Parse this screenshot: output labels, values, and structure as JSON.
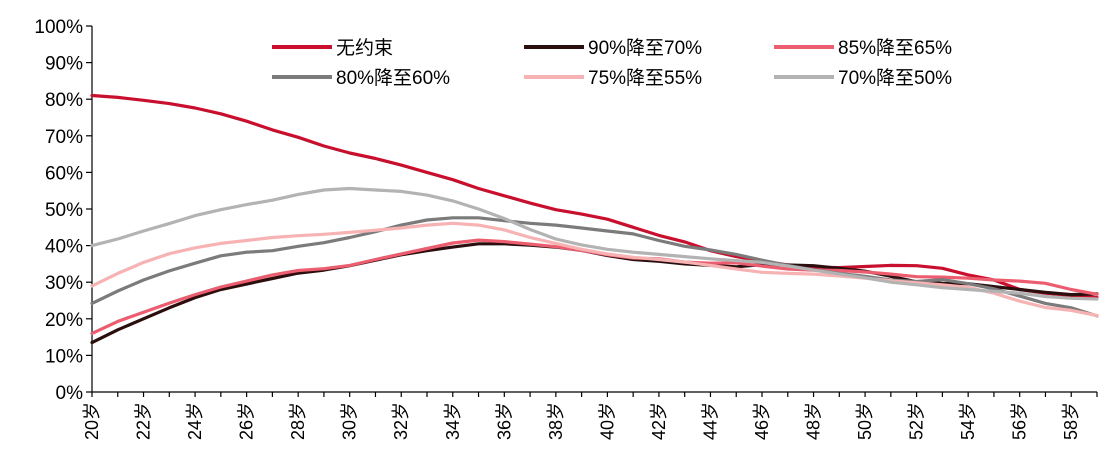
{
  "chart_data": {
    "type": "line",
    "title": "",
    "xlabel": "",
    "ylabel": "",
    "ylim": [
      0,
      100
    ],
    "y_ticks": [
      "0%",
      "10%",
      "20%",
      "30%",
      "40%",
      "50%",
      "60%",
      "70%",
      "80%",
      "90%",
      "100%"
    ],
    "x_ticks": [
      "20岁",
      "22岁",
      "24岁",
      "26岁",
      "28岁",
      "30岁",
      "32岁",
      "34岁",
      "36岁",
      "38岁",
      "40岁",
      "42岁",
      "44岁",
      "46岁",
      "48岁",
      "50岁",
      "52岁",
      "54岁",
      "56岁",
      "58岁"
    ],
    "x": [
      20,
      21,
      22,
      23,
      24,
      25,
      26,
      27,
      28,
      29,
      30,
      31,
      32,
      33,
      34,
      35,
      36,
      37,
      38,
      39,
      40,
      41,
      42,
      43,
      44,
      45,
      46,
      47,
      48,
      49,
      50,
      51,
      52,
      53,
      54,
      55,
      56,
      57,
      58,
      59
    ],
    "grid": false,
    "legend": "top",
    "series": [
      {
        "name": "无约束",
        "color": "#c8102e",
        "values": [
          81,
          80.5,
          79.7,
          78.8,
          77.6,
          76,
          74,
          71.6,
          69.6,
          67.2,
          65.3,
          63.8,
          62,
          60,
          58,
          55.6,
          53.6,
          51.6,
          49.8,
          48.6,
          47.2,
          45,
          42.8,
          41,
          38.6,
          37,
          35.8,
          34.7,
          34.1,
          34,
          34.3,
          34.6,
          34.5,
          33.8,
          32,
          30.6,
          28,
          27,
          26.3,
          25.8
        ]
      },
      {
        "name": "90%降至70%",
        "color": "#2b0f0f",
        "values": [
          13.5,
          17,
          20,
          23,
          25.8,
          28,
          29.5,
          31,
          32.5,
          33.3,
          34.5,
          36,
          37.5,
          38.6,
          39.6,
          40.5,
          40.5,
          40.1,
          39.6,
          38.7,
          37.3,
          36.2,
          35.7,
          35,
          34.6,
          34.2,
          34.8,
          34.7,
          34.5,
          33.8,
          33,
          31.6,
          30.1,
          29.7,
          29.6,
          28.8,
          28,
          27.2,
          26.6,
          26.8
        ]
      },
      {
        "name": "85%降至65%",
        "color": "#ec5d6f",
        "values": [
          16,
          19.3,
          21.8,
          24.3,
          26.6,
          28.7,
          30.3,
          32,
          33.2,
          33.7,
          34.6,
          36.2,
          37.7,
          39.2,
          40.7,
          41.5,
          41.1,
          40.4,
          39.7,
          38.7,
          37.5,
          36.6,
          36.4,
          35.5,
          35.2,
          35.3,
          34.4,
          33.6,
          33.3,
          33.2,
          32.8,
          32.2,
          31.5,
          31.4,
          31.1,
          30.6,
          30.3,
          29.7,
          28,
          26.7
        ]
      },
      {
        "name": "80%降至60%",
        "color": "#7b7b7b",
        "values": [
          24.2,
          27.6,
          30.6,
          33.1,
          35.2,
          37.2,
          38.2,
          38.6,
          39.8,
          40.8,
          42.2,
          43.8,
          45.6,
          47,
          47.6,
          47.6,
          46.8,
          46.1,
          45.6,
          44.8,
          44,
          43.2,
          41.4,
          39.8,
          38.8,
          37.6,
          36,
          34.6,
          33.4,
          32.4,
          31.6,
          30.6,
          30.2,
          30.7,
          29.6,
          28.2,
          26.2,
          24.2,
          23,
          20.8
        ]
      },
      {
        "name": "75%降至55%",
        "color": "#f7b3b3",
        "values": [
          29,
          32.4,
          35.4,
          37.8,
          39.4,
          40.6,
          41.4,
          42.2,
          42.7,
          43.1,
          43.6,
          44.2,
          44.8,
          45.6,
          46.1,
          45.6,
          44.3,
          42.2,
          40.6,
          39,
          37.7,
          36.8,
          36.2,
          35.5,
          34.6,
          33.6,
          32.7,
          32.4,
          32.2,
          31.7,
          31.1,
          30.4,
          29.8,
          29.3,
          28.6,
          27,
          24.8,
          23.1,
          22.3,
          20.9
        ]
      },
      {
        "name": "70%降至50%",
        "color": "#b3b3b3",
        "values": [
          40,
          41.8,
          44,
          46,
          48.2,
          49.8,
          51.2,
          52.4,
          54,
          55.2,
          55.6,
          55.2,
          54.8,
          53.8,
          52.2,
          50,
          47.4,
          44.4,
          41.8,
          40.2,
          39,
          38.2,
          37.6,
          37,
          36.4,
          35.9,
          35.4,
          34.4,
          33.3,
          32.2,
          31.2,
          30,
          29.3,
          28.5,
          28,
          27.5,
          27,
          26.1,
          25.6,
          25.4
        ]
      }
    ]
  }
}
